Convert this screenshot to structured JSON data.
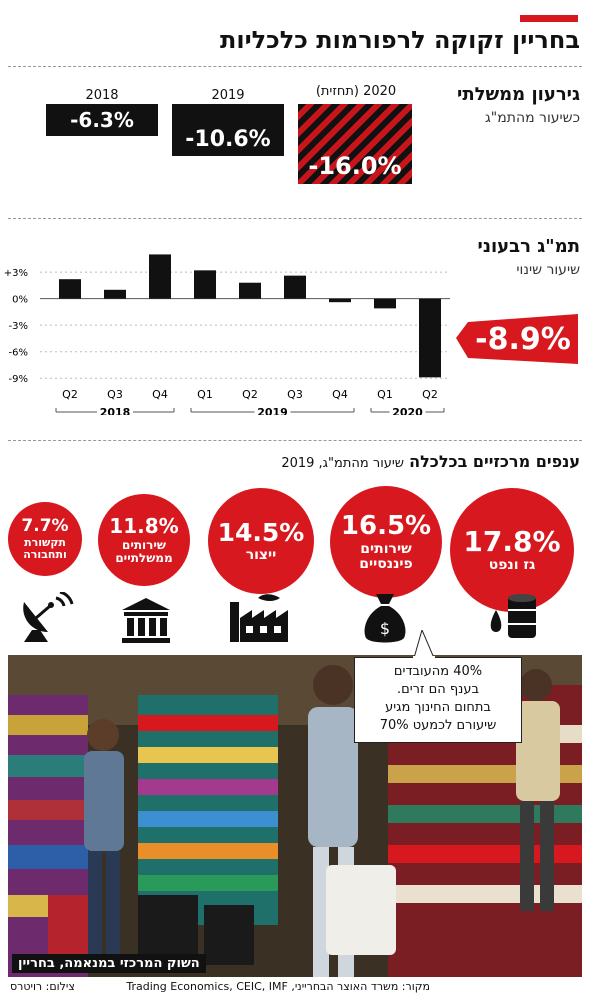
{
  "header": {
    "title": "בחריין זקוקה לרפורמות כלכליות"
  },
  "deficit": {
    "title": "גירעון ממשלתי",
    "subtitle": "כשיעור מהתמ\"ג",
    "items": [
      {
        "year": "2020 (תחזית)",
        "value": "-16.0%",
        "num": -16.0
      },
      {
        "year": "2019",
        "value": "-10.6%",
        "num": -10.6
      },
      {
        "year": "2018",
        "value": "-6.3%",
        "num": -6.3
      }
    ]
  },
  "gdp": {
    "title": "תמ\"ג רבעוני",
    "subtitle": "שיעור שינוי",
    "callout": "-8.9%"
  },
  "chart_data": {
    "type": "bar",
    "categories": [
      "Q2",
      "Q3",
      "Q4",
      "Q1",
      "Q2",
      "Q3",
      "Q4",
      "Q1",
      "Q2"
    ],
    "groups": [
      {
        "label": "2018",
        "from": 0,
        "to": 2
      },
      {
        "label": "2019",
        "from": 3,
        "to": 6
      },
      {
        "label": "2020",
        "from": 7,
        "to": 8
      }
    ],
    "values": [
      2.2,
      1.0,
      5.0,
      3.2,
      1.8,
      2.6,
      -0.4,
      -1.1,
      -8.9
    ],
    "yticks": [
      3,
      0,
      -3,
      -6,
      -9
    ],
    "ytick_labels": [
      "+3%",
      "0%",
      "-3%",
      "-6%",
      "-9%"
    ],
    "ylim": [
      -9.2,
      5.5
    ]
  },
  "sectors": {
    "title": "ענפים מרכזיים בכלכלה",
    "subtitle": "שיעור מהתמ\"ג, 2019",
    "items": [
      {
        "pct": "17.8%",
        "label": "גז ונפט",
        "icon": "oil-barrel-icon"
      },
      {
        "pct": "16.5%",
        "label": "שירותים פיננסיים",
        "icon": "money-bag-icon"
      },
      {
        "pct": "14.5%",
        "label": "ייצור",
        "icon": "factory-icon"
      },
      {
        "pct": "11.8%",
        "label": "שירותים ממשלתיים",
        "icon": "government-building-icon"
      },
      {
        "pct": "7.7%",
        "label": "תקשורת ותחבורה",
        "icon": "satellite-dish-icon"
      }
    ]
  },
  "photo": {
    "bubble_lines": [
      "40% מהעובדים",
      "בענף הם זרים.",
      "בתחום החינוך מגיע",
      "שיעורם לכמעט 70%"
    ],
    "caption": "השוק המרכזי במנאמה, בחריין"
  },
  "footer": {
    "source": "מקור: משרד האוצר הבחרייני, Trading Economics, CEIC, IMF",
    "credit": "צילום: רויטרס"
  },
  "colors": {
    "accent": "#d7191f",
    "dark": "#111111"
  }
}
